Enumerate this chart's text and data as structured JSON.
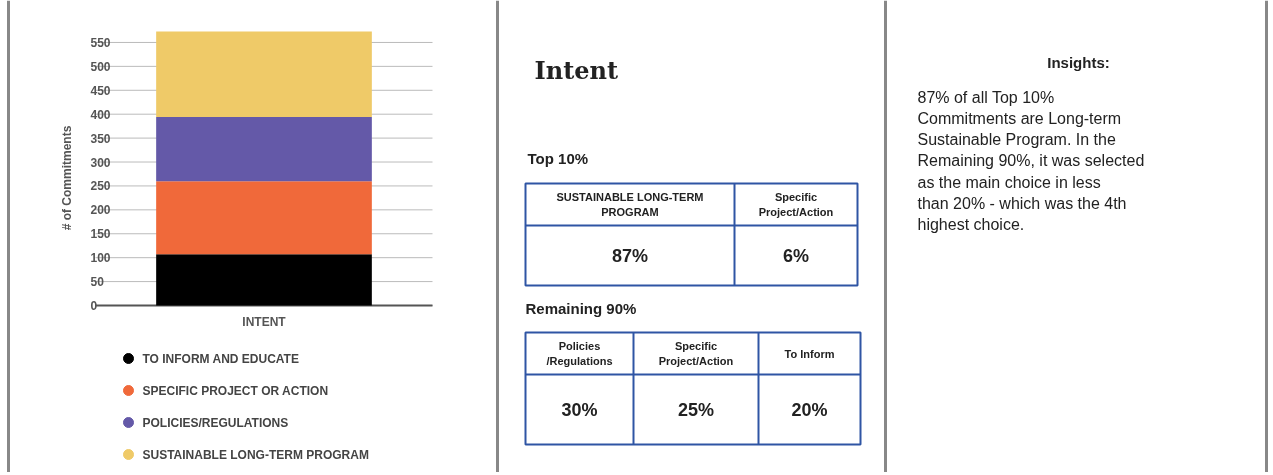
{
  "chart_data": [
    {
      "type": "bar",
      "stacked": true,
      "categories": [
        "INTENT"
      ],
      "ylabel": "# of Commitments",
      "ylim": [
        0,
        575
      ],
      "yticks": [
        0,
        50,
        100,
        150,
        200,
        250,
        300,
        350,
        400,
        450,
        500,
        550
      ],
      "grid": "y",
      "legend": "bottom",
      "series": [
        {
          "name": "TO INFORM AND EDUCATE",
          "color": "#000000",
          "values": [
            107
          ]
        },
        {
          "name": "SPECIFIC PROJECT OR ACTION",
          "color": "#f0693a",
          "values": [
            153
          ]
        },
        {
          "name": "POLICIES/REGULATIONS",
          "color": "#6459a8",
          "values": [
            134
          ]
        },
        {
          "name": "SUSTAINABLE LONG-TERM PROGRAM",
          "color": "#efca68",
          "values": [
            179
          ]
        }
      ]
    },
    {
      "type": "other",
      "title": "Intent",
      "annotations": [
        "Top 10%",
        "SUSTAINABLE LONG-TERM\nPROGRAM",
        "Specific\nProject/Action",
        "87%",
        "6%",
        "Remaining 90%",
        "Policies\n/Regulations",
        "Specific\nProject/Action",
        "To Inform",
        "30%",
        "25%",
        "20%"
      ]
    },
    {
      "type": "other",
      "title": "Insights:",
      "annotations": [
        "87% of all Top 10%\nCommitments are Long-term\nSustainable Program. In the\nRemaining 90%, it was selected\nas the main choice in less\nthan 20% - which was the 4th\nhighest choice."
      ]
    }
  ]
}
